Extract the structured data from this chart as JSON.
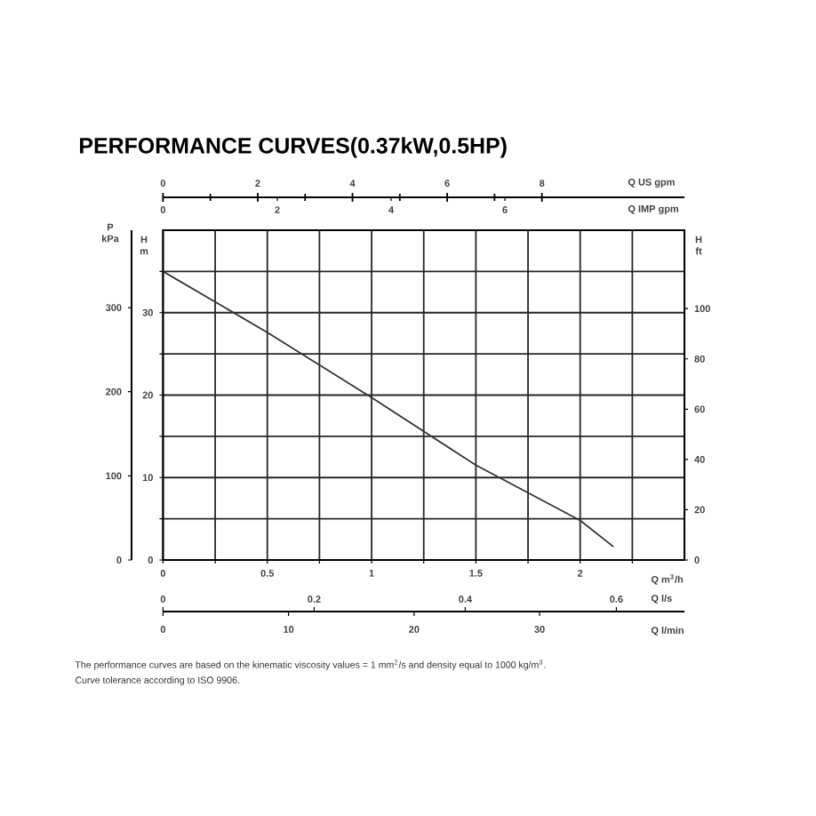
{
  "chart_data": {
    "type": "line",
    "title": "PERFORMANCE CURVES(0.37kW,0.5HP)",
    "x": [
      0,
      0.5,
      1,
      1.5,
      2,
      2.16
    ],
    "series": [
      {
        "color": "#333333",
        "values": [
          35,
          27.6,
          19.7,
          11.5,
          4.8,
          1.6
        ]
      }
    ],
    "xlim": [
      0,
      2.5
    ],
    "xticks": [
      0,
      {
        "value": 0.25,
        "label": null
      },
      0.5,
      {
        "value": 0.75,
        "label": null
      },
      1,
      {
        "value": 1.25,
        "label": null
      },
      1.5,
      {
        "value": 1.75,
        "label": null
      },
      2,
      {
        "value": 2.25,
        "label": null
      }
    ],
    "xlabel": "Q m$^{3}$/h",
    "ylim": [
      0,
      40
    ],
    "yticks": [
      0,
      {
        "value": 5,
        "label": null
      },
      10,
      {
        "value": 15,
        "label": null
      },
      20,
      {
        "value": 25,
        "label": null
      },
      30,
      {
        "value": 35,
        "label": null
      }
    ],
    "ylabel": "H m",
    "y2lim": [
      0,
      131.2
    ],
    "y2ticks": [
      0,
      20,
      40,
      60,
      80,
      100
    ],
    "y2label": "H ft",
    "y3lim": [
      0,
      392
    ],
    "y3ticks": [
      0,
      100,
      200,
      300
    ],
    "y3label": "P kPa",
    "x2lim": [
      0,
      11.01
    ],
    "x2ticks": [
      0,
      2,
      4,
      6,
      8
    ],
    "x2label": "Q US gpm",
    "grid": true,
    "marker": "none",
    "line_style": "solid",
    "annotations": [
      "The performance curves are based on the kinematic viscosity values = 1 mm$^{2}$/s and density equal to 1000 kg/m$^{3}$.",
      "Curve tolerance according to ISO 9906.",
      "Q IMP gpm",
      "0",
      "2",
      "4",
      "6",
      "Q l/s",
      "0",
      "0.2",
      "0.4",
      "0.6",
      "Q l/min",
      "0",
      "10",
      "20",
      "30"
    ]
  }
}
